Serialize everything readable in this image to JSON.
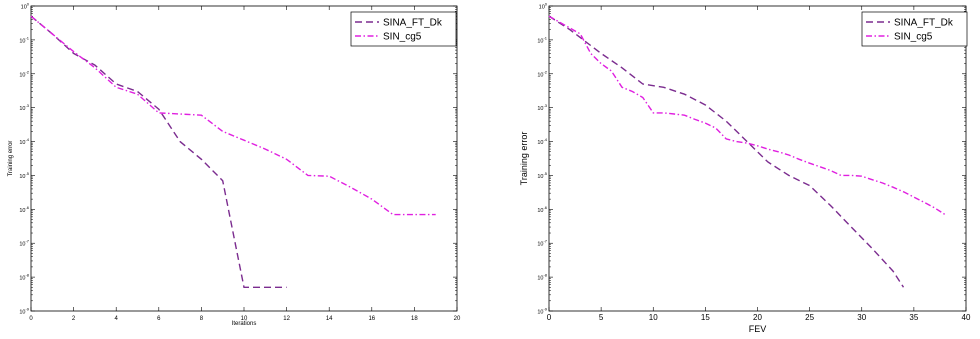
{
  "chart_data": [
    {
      "type": "line",
      "xlabel": "Iterations",
      "ylabel": "Training error",
      "yscale": "log",
      "xlim": [
        0,
        20
      ],
      "ylim": [
        1e-09,
        1
      ],
      "xticks": [
        "0",
        "2",
        "4",
        "6",
        "8",
        "10",
        "12",
        "14",
        "16",
        "18",
        "20"
      ],
      "yticks": [
        {
          "base": "10",
          "exp": "-9"
        },
        {
          "base": "10",
          "exp": "-8"
        },
        {
          "base": "10",
          "exp": "-7"
        },
        {
          "base": "10",
          "exp": "-6"
        },
        {
          "base": "10",
          "exp": "-5"
        },
        {
          "base": "10",
          "exp": "-4"
        },
        {
          "base": "10",
          "exp": "-3"
        },
        {
          "base": "10",
          "exp": "-2"
        },
        {
          "base": "10",
          "exp": "-1"
        },
        {
          "base": "10",
          "exp": "0"
        }
      ],
      "legend_position": "top-right",
      "series": [
        {
          "name": "SINA_FT_Dk",
          "color": "#7B2C8F",
          "dash": "dashed",
          "x": [
            0,
            1,
            2,
            3,
            4,
            5,
            6,
            7,
            8,
            9,
            10,
            11,
            12
          ],
          "y": [
            0.5,
            0.15,
            0.04,
            0.018,
            0.005,
            0.003,
            0.0009,
            0.0001,
            3e-05,
            7e-06,
            5e-09,
            5e-09,
            5e-09
          ]
        },
        {
          "name": "SIN_cg5",
          "color": "#E020E0",
          "dash": "dashdot",
          "x": [
            0,
            1,
            2,
            3,
            4,
            5,
            6,
            7,
            8,
            9,
            10,
            11,
            12,
            13,
            14,
            15,
            16,
            17,
            18,
            19
          ],
          "y": [
            0.5,
            0.15,
            0.045,
            0.015,
            0.004,
            0.0025,
            0.0007,
            0.00065,
            0.0006,
            0.0002,
            0.00011,
            6e-05,
            3e-05,
            1e-05,
            9.5e-06,
            4.5e-06,
            2e-06,
            7e-07,
            7e-07,
            7e-07
          ]
        }
      ]
    },
    {
      "type": "line",
      "xlabel": "FEV",
      "ylabel": "Training error",
      "yscale": "log",
      "xlim": [
        0,
        40
      ],
      "ylim": [
        1e-09,
        1
      ],
      "xticks": [
        "0",
        "5",
        "10",
        "15",
        "20",
        "25",
        "30",
        "35",
        "40"
      ],
      "yticks": [
        {
          "base": "10",
          "exp": "-9"
        },
        {
          "base": "10",
          "exp": "-8"
        },
        {
          "base": "10",
          "exp": "-7"
        },
        {
          "base": "10",
          "exp": "-6"
        },
        {
          "base": "10",
          "exp": "-5"
        },
        {
          "base": "10",
          "exp": "-4"
        },
        {
          "base": "10",
          "exp": "-3"
        },
        {
          "base": "10",
          "exp": "-2"
        },
        {
          "base": "10",
          "exp": "-1"
        },
        {
          "base": "10",
          "exp": "0"
        }
      ],
      "legend_position": "top-right",
      "series": [
        {
          "name": "SINA_FT_Dk",
          "color": "#7B2C8F",
          "dash": "dashed",
          "x": [
            0,
            2,
            5,
            7,
            9,
            11,
            13,
            15,
            17,
            19,
            21,
            23,
            25,
            27,
            29,
            31,
            33,
            34
          ],
          "y": [
            0.5,
            0.2,
            0.04,
            0.015,
            0.005,
            0.004,
            0.0025,
            0.0012,
            0.0004,
            0.0001,
            2.5e-05,
            1e-05,
            5e-06,
            1.3e-06,
            3e-07,
            7e-08,
            1.5e-08,
            5e-09
          ]
        },
        {
          "name": "SIN_cg5",
          "color": "#E020E0",
          "dash": "dashdot",
          "x": [
            0,
            3,
            4,
            5,
            6,
            7,
            8,
            9,
            10,
            11,
            12,
            13,
            14,
            15,
            16,
            17,
            18,
            19,
            20,
            21,
            22,
            23,
            24,
            25,
            26,
            27,
            28,
            29,
            30,
            31,
            32,
            33,
            34,
            35,
            36,
            37,
            38
          ],
          "y": [
            0.5,
            0.15,
            0.04,
            0.02,
            0.012,
            0.004,
            0.003,
            0.002,
            0.0007,
            0.0007,
            0.00065,
            0.0006,
            0.00045,
            0.00035,
            0.00025,
            0.00012,
            0.0001,
            9e-05,
            7.5e-05,
            6e-05,
            5e-05,
            4e-05,
            3e-05,
            2.3e-05,
            1.8e-05,
            1.4e-05,
            1e-05,
            1e-05,
            9.5e-06,
            7.5e-06,
            6e-06,
            4.5e-06,
            3.3e-06,
            2.3e-06,
            1.6e-06,
            1.1e-06,
            7e-07
          ]
        }
      ]
    }
  ]
}
